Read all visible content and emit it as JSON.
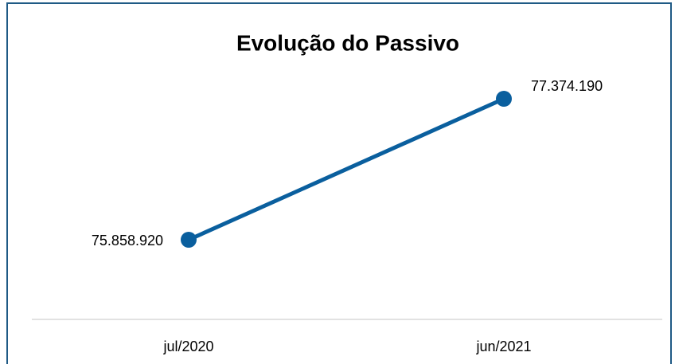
{
  "chart_data": {
    "type": "line",
    "title": "Evolução do Passivo",
    "categories": [
      "jul/2020",
      "jun/2021"
    ],
    "values": [
      75858920,
      77374190
    ],
    "value_labels": [
      "75.858.920",
      "77.374.190"
    ],
    "color": "#0a5f9e"
  }
}
